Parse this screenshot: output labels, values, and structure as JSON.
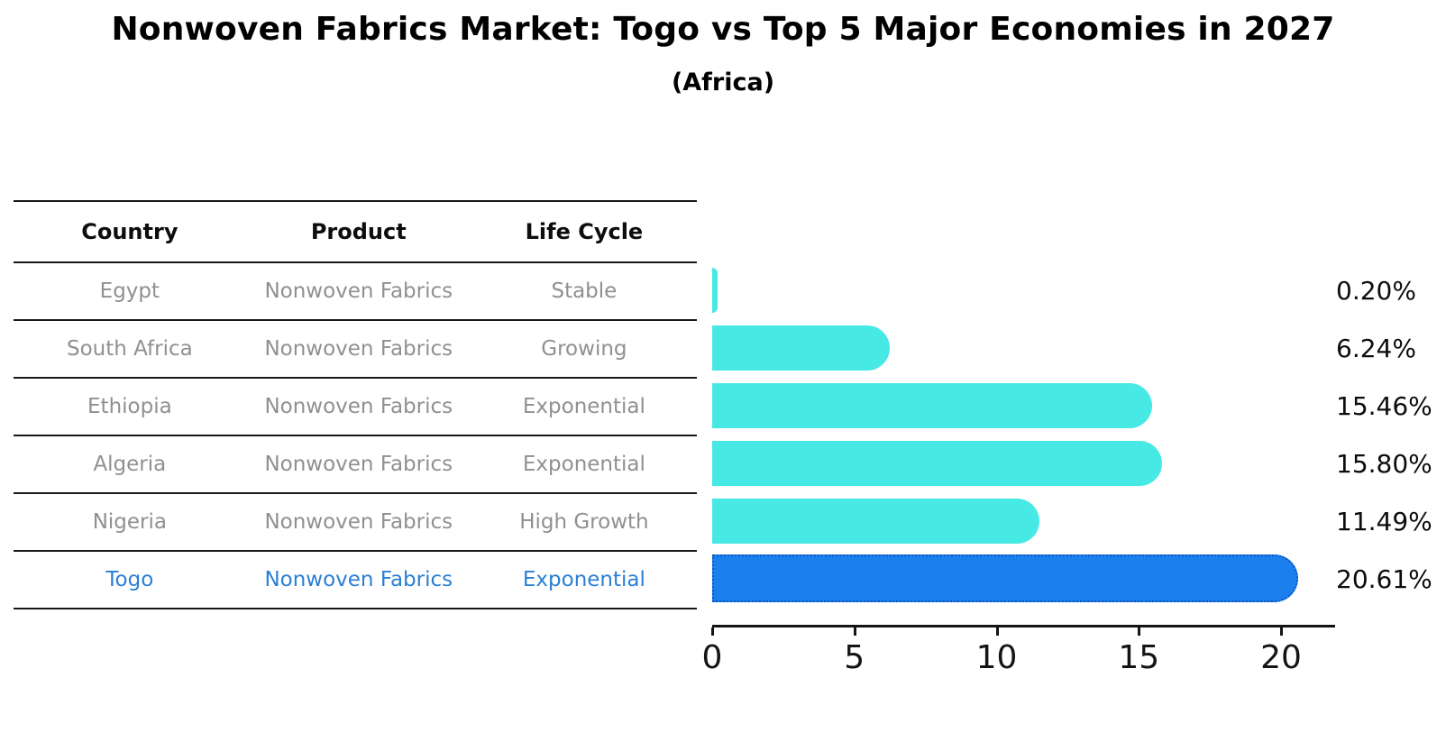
{
  "title": "Nonwoven Fabrics Market: Togo vs Top 5 Major Economies in 2027",
  "subtitle": "(Africa)",
  "table": {
    "headers": [
      "Country",
      "Product",
      "Life Cycle"
    ],
    "rows": [
      {
        "country": "Egypt",
        "product": "Nonwoven Fabrics",
        "life_cycle": "Stable",
        "highlight": false
      },
      {
        "country": "South Africa",
        "product": "Nonwoven Fabrics",
        "life_cycle": "Growing",
        "highlight": false
      },
      {
        "country": "Ethiopia",
        "product": "Nonwoven Fabrics",
        "life_cycle": "Exponential",
        "highlight": false
      },
      {
        "country": "Algeria",
        "product": "Nonwoven Fabrics",
        "life_cycle": "Exponential",
        "highlight": false
      },
      {
        "country": "Nigeria",
        "product": "Nonwoven Fabrics",
        "life_cycle": "High Growth",
        "highlight": false
      },
      {
        "country": "Togo",
        "product": "Nonwoven Fabrics",
        "life_cycle": "Exponential",
        "highlight": true
      }
    ]
  },
  "chart_data": {
    "type": "bar",
    "orientation": "horizontal",
    "title": "Nonwoven Fabrics Market: Togo vs Top 5 Major Economies in 2027",
    "subtitle": "(Africa)",
    "categories": [
      "Egypt",
      "South Africa",
      "Ethiopia",
      "Algeria",
      "Nigeria",
      "Togo"
    ],
    "values": [
      0.2,
      6.24,
      15.46,
      15.8,
      11.49,
      20.61
    ],
    "value_labels": [
      "0.20%",
      "6.24%",
      "15.46%",
      "15.80%",
      "11.49%",
      "20.61%"
    ],
    "x_ticks": [
      0,
      5,
      10,
      15,
      20
    ],
    "x_tick_labels": [
      "0",
      "5",
      "10",
      "15",
      "20"
    ],
    "xlim": [
      0,
      21.9
    ],
    "xlabel": "",
    "ylabel": "",
    "grid": false,
    "legend": false,
    "highlight_index": 5,
    "bar_color": "#47E9E4",
    "highlight_bar_color": "#1B80EE",
    "highlight_edge_color": "#0D57C2",
    "highlight_text_color": "#2A7FD4"
  }
}
